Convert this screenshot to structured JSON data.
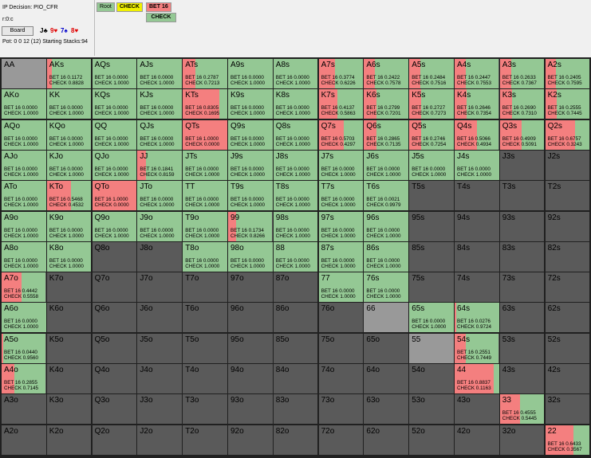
{
  "header": {
    "decision": "IP Decision:  PIO_CFR",
    "line": "r:0:c",
    "board_button": "Board",
    "board_cards": [
      {
        "text": "J♣",
        "color": "#000000"
      },
      {
        "text": "9♥",
        "color": "#e00000"
      },
      {
        "text": "7♠",
        "color": "#0000cc"
      },
      {
        "text": "8♥",
        "color": "#e00000"
      }
    ],
    "pot": "Pot: 0 0 12 (12) Starting Stacks:94"
  },
  "tree": {
    "root": "Root",
    "check": "CHECK",
    "bet": "BET 16",
    "check2": "CHECK"
  },
  "colors": {
    "bet": "#f47f7f",
    "check": "#94c894",
    "none": "#5a5a5a",
    "pair": "#999999"
  },
  "ranks": [
    "A",
    "K",
    "Q",
    "J",
    "T",
    "9",
    "8",
    "7",
    "6",
    "5",
    "4",
    "3",
    "2"
  ],
  "cells": [
    {
      "hand": "AA",
      "bet": null,
      "check": null,
      "grey": 1.0
    },
    {
      "hand": "AKs",
      "bet": "0.1172",
      "check": "0.8828"
    },
    {
      "hand": "AQs",
      "bet": "0.0000",
      "check": "1.0000"
    },
    {
      "hand": "AJs",
      "bet": "0.0000",
      "check": "1.0000"
    },
    {
      "hand": "ATs",
      "bet": "0.2787",
      "check": "0.7213"
    },
    {
      "hand": "A9s",
      "bet": "0.0000",
      "check": "1.0000"
    },
    {
      "hand": "A8s",
      "bet": "0.0000",
      "check": "1.0000"
    },
    {
      "hand": "A7s",
      "bet": "0.3774",
      "check": "0.6226"
    },
    {
      "hand": "A6s",
      "bet": "0.2422",
      "check": "0.7578"
    },
    {
      "hand": "A5s",
      "bet": "0.2484",
      "check": "0.7516"
    },
    {
      "hand": "A4s",
      "bet": "0.2447",
      "check": "0.7553"
    },
    {
      "hand": "A3s",
      "bet": "0.2633",
      "check": "0.7367"
    },
    {
      "hand": "A2s",
      "bet": "0.2405",
      "check": "0.7595"
    },
    {
      "hand": "AKo",
      "bet": "0.0000",
      "check": "1.0000"
    },
    {
      "hand": "KK",
      "bet": "0.0000",
      "check": "1.0000"
    },
    {
      "hand": "KQs",
      "bet": "0.0000",
      "check": "1.0000"
    },
    {
      "hand": "KJs",
      "bet": "0.0000",
      "check": "1.0000"
    },
    {
      "hand": "KTs",
      "bet": "0.8305",
      "check": "0.1695"
    },
    {
      "hand": "K9s",
      "bet": "0.0000",
      "check": "1.0000"
    },
    {
      "hand": "K8s",
      "bet": "0.0000",
      "check": "1.0000"
    },
    {
      "hand": "K7s",
      "bet": "0.4137",
      "check": "0.5863"
    },
    {
      "hand": "K6s",
      "bet": "0.2799",
      "check": "0.7201"
    },
    {
      "hand": "K5s",
      "bet": "0.2727",
      "check": "0.7273"
    },
    {
      "hand": "K4s",
      "bet": "0.2646",
      "check": "0.7354"
    },
    {
      "hand": "K3s",
      "bet": "0.2690",
      "check": "0.7310"
    },
    {
      "hand": "K2s",
      "bet": "0.2555",
      "check": "0.7445"
    },
    {
      "hand": "AQo",
      "bet": "0.0000",
      "check": "1.0000"
    },
    {
      "hand": "KQo",
      "bet": "0.0000",
      "check": "1.0000"
    },
    {
      "hand": "QQ",
      "bet": "0.0000",
      "check": "1.0000"
    },
    {
      "hand": "QJs",
      "bet": "0.0000",
      "check": "1.0000"
    },
    {
      "hand": "QTs",
      "bet": "1.0000",
      "check": "0.0000"
    },
    {
      "hand": "Q9s",
      "bet": "0.0000",
      "check": "1.0000"
    },
    {
      "hand": "Q8s",
      "bet": "0.0000",
      "check": "1.0000"
    },
    {
      "hand": "Q7s",
      "bet": "0.5703",
      "check": "0.4297"
    },
    {
      "hand": "Q6s",
      "bet": "0.2865",
      "check": "0.7135"
    },
    {
      "hand": "Q5s",
      "bet": "0.2746",
      "check": "0.7254"
    },
    {
      "hand": "Q4s",
      "bet": "0.5066",
      "check": "0.4934"
    },
    {
      "hand": "Q3s",
      "bet": "0.4909",
      "check": "0.5091"
    },
    {
      "hand": "Q2s",
      "bet": "0.6757",
      "check": "0.3243"
    },
    {
      "hand": "AJo",
      "bet": "0.0000",
      "check": "1.0000"
    },
    {
      "hand": "KJo",
      "bet": "0.0000",
      "check": "1.0000"
    },
    {
      "hand": "QJo",
      "bet": "0.0000",
      "check": "1.0000"
    },
    {
      "hand": "JJ",
      "bet": "0.1841",
      "check": "0.8159"
    },
    {
      "hand": "JTs",
      "bet": "0.0000",
      "check": "1.0000"
    },
    {
      "hand": "J9s",
      "bet": "0.0000",
      "check": "1.0000"
    },
    {
      "hand": "J8s",
      "bet": "0.0000",
      "check": "1.0000"
    },
    {
      "hand": "J7s",
      "bet": "0.0000",
      "check": "1.0000"
    },
    {
      "hand": "J6s",
      "bet": "0.0000",
      "check": "1.0000"
    },
    {
      "hand": "J5s",
      "bet": "0.0000",
      "check": "1.0000"
    },
    {
      "hand": "J4s",
      "bet": "0.0000",
      "check": "1.0000"
    },
    {
      "hand": "J3s",
      "bet": null,
      "check": null
    },
    {
      "hand": "J2s",
      "bet": null,
      "check": null
    },
    {
      "hand": "ATo",
      "bet": "0.0000",
      "check": "1.0000"
    },
    {
      "hand": "KTo",
      "bet": "0.5468",
      "check": "0.4532"
    },
    {
      "hand": "QTo",
      "bet": "1.0000",
      "check": "0.0000"
    },
    {
      "hand": "JTo",
      "bet": "0.0000",
      "check": "1.0000"
    },
    {
      "hand": "TT",
      "bet": "0.0000",
      "check": "1.0000",
      "grey": 0.4
    },
    {
      "hand": "T9s",
      "bet": "0.0000",
      "check": "1.0000"
    },
    {
      "hand": "T8s",
      "bet": "0.0000",
      "check": "1.0000"
    },
    {
      "hand": "T7s",
      "bet": "0.0000",
      "check": "1.0000"
    },
    {
      "hand": "T6s",
      "bet": "0.0021",
      "check": "0.9979"
    },
    {
      "hand": "T5s",
      "bet": null,
      "check": null
    },
    {
      "hand": "T4s",
      "bet": null,
      "check": null
    },
    {
      "hand": "T3s",
      "bet": null,
      "check": null
    },
    {
      "hand": "T2s",
      "bet": null,
      "check": null
    },
    {
      "hand": "A9o",
      "bet": "0.0000",
      "check": "1.0000"
    },
    {
      "hand": "K9o",
      "bet": "0.0000",
      "check": "1.0000"
    },
    {
      "hand": "Q9o",
      "bet": "0.0000",
      "check": "1.0000"
    },
    {
      "hand": "J9o",
      "bet": "0.0000",
      "check": "1.0000"
    },
    {
      "hand": "T9o",
      "bet": "0.0000",
      "check": "1.0000"
    },
    {
      "hand": "99",
      "bet": "0.1734",
      "check": "0.8266"
    },
    {
      "hand": "98s",
      "bet": "0.0000",
      "check": "1.0000"
    },
    {
      "hand": "97s",
      "bet": "0.0000",
      "check": "1.0000"
    },
    {
      "hand": "96s",
      "bet": "0.0000",
      "check": "1.0000",
      "grey": 0.6
    },
    {
      "hand": "95s",
      "bet": null,
      "check": null
    },
    {
      "hand": "94s",
      "bet": null,
      "check": null
    },
    {
      "hand": "93s",
      "bet": null,
      "check": null
    },
    {
      "hand": "92s",
      "bet": null,
      "check": null
    },
    {
      "hand": "A8o",
      "bet": "0.0000",
      "check": "1.0000"
    },
    {
      "hand": "K8o",
      "bet": "0.0000",
      "check": "1.0000"
    },
    {
      "hand": "Q8o",
      "bet": null,
      "check": null
    },
    {
      "hand": "J8o",
      "bet": null,
      "check": null
    },
    {
      "hand": "T8o",
      "bet": "0.0000",
      "check": "1.0000"
    },
    {
      "hand": "98o",
      "bet": "0.0000",
      "check": "1.0000"
    },
    {
      "hand": "88",
      "bet": "0.0000",
      "check": "1.0000",
      "grey": 0.6
    },
    {
      "hand": "87s",
      "bet": "0.0000",
      "check": "1.0000"
    },
    {
      "hand": "86s",
      "bet": "0.0000",
      "check": "1.0000"
    },
    {
      "hand": "85s",
      "bet": null,
      "check": null
    },
    {
      "hand": "84s",
      "bet": null,
      "check": null
    },
    {
      "hand": "83s",
      "bet": null,
      "check": null
    },
    {
      "hand": "82s",
      "bet": null,
      "check": null
    },
    {
      "hand": "A7o",
      "bet": "0.4442",
      "check": "0.5558"
    },
    {
      "hand": "K7o",
      "bet": null,
      "check": null
    },
    {
      "hand": "Q7o",
      "bet": null,
      "check": null
    },
    {
      "hand": "J7o",
      "bet": null,
      "check": null
    },
    {
      "hand": "T7o",
      "bet": null,
      "check": null
    },
    {
      "hand": "97o",
      "bet": null,
      "check": null
    },
    {
      "hand": "87o",
      "bet": null,
      "check": null
    },
    {
      "hand": "77",
      "bet": "0.0000",
      "check": "1.0000"
    },
    {
      "hand": "76s",
      "bet": "0.0000",
      "check": "1.0000",
      "grey": 0.4
    },
    {
      "hand": "75s",
      "bet": null,
      "check": null
    },
    {
      "hand": "74s",
      "bet": null,
      "check": null
    },
    {
      "hand": "73s",
      "bet": null,
      "check": null
    },
    {
      "hand": "72s",
      "bet": null,
      "check": null
    },
    {
      "hand": "A6o",
      "bet": "0.0000",
      "check": "1.0000"
    },
    {
      "hand": "K6o",
      "bet": null,
      "check": null
    },
    {
      "hand": "Q6o",
      "bet": null,
      "check": null
    },
    {
      "hand": "J6o",
      "bet": null,
      "check": null
    },
    {
      "hand": "T6o",
      "bet": null,
      "check": null
    },
    {
      "hand": "96o",
      "bet": null,
      "check": null
    },
    {
      "hand": "86o",
      "bet": null,
      "check": null
    },
    {
      "hand": "76o",
      "bet": null,
      "check": null
    },
    {
      "hand": "66",
      "bet": null,
      "check": null,
      "grey": 1.0
    },
    {
      "hand": "65s",
      "bet": "0.0000",
      "check": "1.0000"
    },
    {
      "hand": "64s",
      "bet": "0.0276",
      "check": "0.9724"
    },
    {
      "hand": "63s",
      "bet": null,
      "check": null
    },
    {
      "hand": "62s",
      "bet": null,
      "check": null
    },
    {
      "hand": "A5o",
      "bet": "0.0440",
      "check": "0.9560"
    },
    {
      "hand": "K5o",
      "bet": null,
      "check": null
    },
    {
      "hand": "Q5o",
      "bet": null,
      "check": null
    },
    {
      "hand": "J5o",
      "bet": null,
      "check": null
    },
    {
      "hand": "T5o",
      "bet": null,
      "check": null
    },
    {
      "hand": "95o",
      "bet": null,
      "check": null
    },
    {
      "hand": "85o",
      "bet": null,
      "check": null
    },
    {
      "hand": "75o",
      "bet": null,
      "check": null
    },
    {
      "hand": "65o",
      "bet": null,
      "check": null
    },
    {
      "hand": "55",
      "bet": null,
      "check": null,
      "grey": 1.0
    },
    {
      "hand": "54s",
      "bet": "0.2551",
      "check": "0.7449"
    },
    {
      "hand": "53s",
      "bet": null,
      "check": null
    },
    {
      "hand": "52s",
      "bet": null,
      "check": null
    },
    {
      "hand": "A4o",
      "bet": "0.2855",
      "check": "0.7145"
    },
    {
      "hand": "K4o",
      "bet": null,
      "check": null
    },
    {
      "hand": "Q4o",
      "bet": null,
      "check": null
    },
    {
      "hand": "J4o",
      "bet": null,
      "check": null
    },
    {
      "hand": "T4o",
      "bet": null,
      "check": null
    },
    {
      "hand": "94o",
      "bet": null,
      "check": null
    },
    {
      "hand": "84o",
      "bet": null,
      "check": null
    },
    {
      "hand": "74o",
      "bet": null,
      "check": null
    },
    {
      "hand": "64o",
      "bet": null,
      "check": null
    },
    {
      "hand": "54o",
      "bet": null,
      "check": null
    },
    {
      "hand": "44",
      "bet": "0.8837",
      "check": "0.1163",
      "grey": 0.6
    },
    {
      "hand": "43s",
      "bet": null,
      "check": null
    },
    {
      "hand": "42s",
      "bet": null,
      "check": null
    },
    {
      "hand": "A3o",
      "bet": null,
      "check": null
    },
    {
      "hand": "K3o",
      "bet": null,
      "check": null
    },
    {
      "hand": "Q3o",
      "bet": null,
      "check": null
    },
    {
      "hand": "J3o",
      "bet": null,
      "check": null
    },
    {
      "hand": "T3o",
      "bet": null,
      "check": null
    },
    {
      "hand": "93o",
      "bet": null,
      "check": null
    },
    {
      "hand": "83o",
      "bet": null,
      "check": null
    },
    {
      "hand": "73o",
      "bet": null,
      "check": null
    },
    {
      "hand": "63o",
      "bet": null,
      "check": null
    },
    {
      "hand": "53o",
      "bet": null,
      "check": null
    },
    {
      "hand": "43o",
      "bet": null,
      "check": null
    },
    {
      "hand": "33",
      "bet": "0.4555",
      "check": "0.5445",
      "grey": 0.6
    },
    {
      "hand": "32s",
      "bet": null,
      "check": null
    },
    {
      "hand": "A2o",
      "bet": null,
      "check": null
    },
    {
      "hand": "K2o",
      "bet": null,
      "check": null
    },
    {
      "hand": "Q2o",
      "bet": null,
      "check": null
    },
    {
      "hand": "J2o",
      "bet": null,
      "check": null
    },
    {
      "hand": "T2o",
      "bet": null,
      "check": null
    },
    {
      "hand": "92o",
      "bet": null,
      "check": null
    },
    {
      "hand": "82o",
      "bet": null,
      "check": null
    },
    {
      "hand": "72o",
      "bet": null,
      "check": null
    },
    {
      "hand": "62o",
      "bet": null,
      "check": null
    },
    {
      "hand": "52o",
      "bet": null,
      "check": null
    },
    {
      "hand": "42o",
      "bet": null,
      "check": null
    },
    {
      "hand": "32o",
      "bet": null,
      "check": null
    },
    {
      "hand": "22",
      "bet": "0.6433",
      "check": "0.3567",
      "grey": 0.4
    }
  ],
  "labels": {
    "bet_prefix": "BET 16",
    "check_prefix": "CHECK"
  }
}
